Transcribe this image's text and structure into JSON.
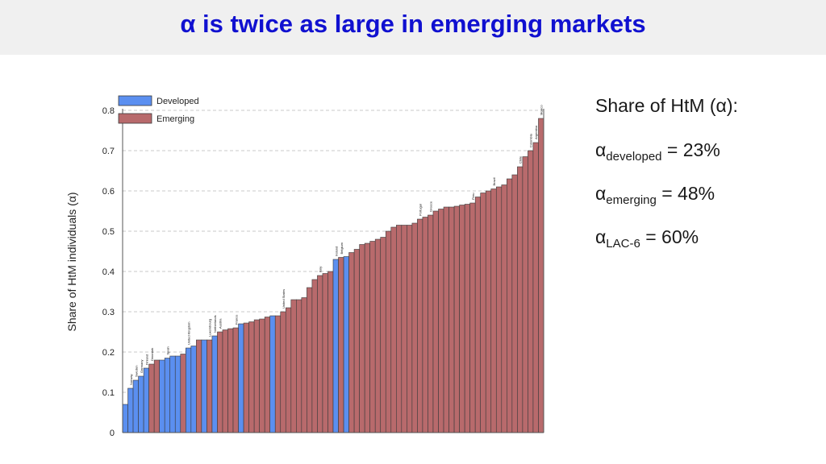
{
  "slide_title": "α is twice as large in emerging markets",
  "side_panel": {
    "heading": "Share of HtM (α):",
    "rows": [
      {
        "symbol": "α",
        "subscript": "developed",
        "value": "= 23%"
      },
      {
        "symbol": "α",
        "subscript": "emerging",
        "value": "= 48%"
      },
      {
        "symbol": "α",
        "subscript": "LAC-6",
        "value": "= 60%"
      }
    ]
  },
  "colors": {
    "developed": "#5b8ff0",
    "emerging": "#b86a6c",
    "title": "#1010d0"
  },
  "chart_data": {
    "type": "bar",
    "ylabel": "Share of HtM individuals (α)",
    "ylim": [
      0,
      0.8
    ],
    "yticks": [
      "0",
      "0.1",
      "0.2",
      "0.3",
      "0.4",
      "0.5",
      "0.6",
      "0.7",
      "0.8"
    ],
    "grid": true,
    "legend_position": "top-left",
    "legend": [
      {
        "key": "D",
        "label": "Developed"
      },
      {
        "key": "E",
        "label": "Emerging"
      }
    ],
    "values": [
      0.07,
      0.11,
      0.13,
      0.14,
      0.16,
      0.17,
      0.18,
      0.18,
      0.185,
      0.19,
      0.19,
      0.195,
      0.21,
      0.215,
      0.23,
      0.23,
      0.23,
      0.24,
      0.25,
      0.255,
      0.258,
      0.26,
      0.27,
      0.272,
      0.275,
      0.28,
      0.282,
      0.287,
      0.29,
      0.29,
      0.3,
      0.31,
      0.33,
      0.33,
      0.335,
      0.36,
      0.38,
      0.39,
      0.395,
      0.4,
      0.43,
      0.435,
      0.437,
      0.447,
      0.455,
      0.467,
      0.47,
      0.475,
      0.48,
      0.485,
      0.5,
      0.51,
      0.515,
      0.515,
      0.515,
      0.52,
      0.53,
      0.535,
      0.54,
      0.55,
      0.555,
      0.56,
      0.56,
      0.562,
      0.565,
      0.567,
      0.57,
      0.585,
      0.595,
      0.6,
      0.605,
      0.61,
      0.615,
      0.63,
      0.64,
      0.66,
      0.685,
      0.7,
      0.72,
      0.78
    ],
    "groups": "DDDDDEEDDDDEDDEDEDEEEEDEEEEEDEEEEEEEEEEEDEDEEEEEEEEEEEEEEEEEEEEEEEEEEEEEEEEEEEEE",
    "bar_labels": [
      {
        "index": 1,
        "text": "Norway"
      },
      {
        "index": 2,
        "text": "Sweden"
      },
      {
        "index": 3,
        "text": "Germany"
      },
      {
        "index": 4,
        "text": "Finland"
      },
      {
        "index": 5,
        "text": "Denmark"
      },
      {
        "index": 8,
        "text": "Spain"
      },
      {
        "index": 12,
        "text": "United Kingdom"
      },
      {
        "index": 16,
        "text": "Luxembourg"
      },
      {
        "index": 17,
        "text": "Netherlands"
      },
      {
        "index": 18,
        "text": "Austria"
      },
      {
        "index": 21,
        "text": "France"
      },
      {
        "index": 30,
        "text": "United States"
      },
      {
        "index": 37,
        "text": "Italy"
      },
      {
        "index": 40,
        "text": "Ireland"
      },
      {
        "index": 41,
        "text": "Belgium"
      },
      {
        "index": 56,
        "text": "Portugal"
      },
      {
        "index": 58,
        "text": "Greece"
      },
      {
        "index": 66,
        "text": "Peru"
      },
      {
        "index": 70,
        "text": "Brazil"
      },
      {
        "index": 75,
        "text": "Chile"
      },
      {
        "index": 77,
        "text": "Colombia"
      },
      {
        "index": 78,
        "text": "Argentina"
      },
      {
        "index": 79,
        "text": "Mexico"
      }
    ]
  }
}
